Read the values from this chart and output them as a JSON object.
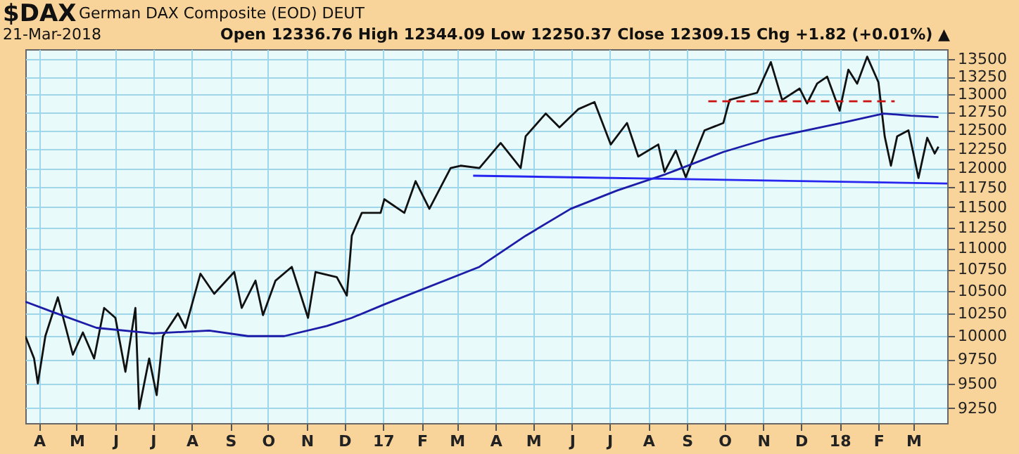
{
  "chart_data": {
    "type": "line",
    "title": "$DAX",
    "subtitle": "German DAX Composite (EOD)  DEUT",
    "annotations": [
      "21-Mar-2018",
      "Open 12336.76  High 12344.09  Low 12250.37  Close 12309.15  Chg +1.82 (+0.01%) ▲"
    ],
    "log": "y",
    "grid": true,
    "legend": false,
    "xlim": [
      "2016-03-21",
      "2018-03-28"
    ],
    "ylim": [
      9100,
      13650
    ],
    "xticks": [
      {
        "value": "2016-04-01",
        "label": "A"
      },
      {
        "value": "2016-05-01",
        "label": "M"
      },
      {
        "value": "2016-06-01",
        "label": "J"
      },
      {
        "value": "2016-07-01",
        "label": "J"
      },
      {
        "value": "2016-08-01",
        "label": "A"
      },
      {
        "value": "2016-09-01",
        "label": "S"
      },
      {
        "value": "2016-10-01",
        "label": "O"
      },
      {
        "value": "2016-11-01",
        "label": "N"
      },
      {
        "value": "2016-12-01",
        "label": "D"
      },
      {
        "value": "2017-01-01",
        "label": "17"
      },
      {
        "value": "2017-02-01",
        "label": "F"
      },
      {
        "value": "2017-03-01",
        "label": "M"
      },
      {
        "value": "2017-04-01",
        "label": "A"
      },
      {
        "value": "2017-05-01",
        "label": "M"
      },
      {
        "value": "2017-06-01",
        "label": "J"
      },
      {
        "value": "2017-07-01",
        "label": "J"
      },
      {
        "value": "2017-08-01",
        "label": "A"
      },
      {
        "value": "2017-09-01",
        "label": "S"
      },
      {
        "value": "2017-10-01",
        "label": "O"
      },
      {
        "value": "2017-11-01",
        "label": "N"
      },
      {
        "value": "2017-12-01",
        "label": "D"
      },
      {
        "value": "2018-01-01",
        "label": "18"
      },
      {
        "value": "2018-02-01",
        "label": "F"
      },
      {
        "value": "2018-03-01",
        "label": "M"
      }
    ],
    "yticks": [
      9250,
      9500,
      9750,
      10000,
      10250,
      10500,
      10750,
      11000,
      11250,
      11500,
      11750,
      12000,
      12250,
      12500,
      12750,
      13000,
      13250,
      13500
    ],
    "series": [
      {
        "color": "#111111",
        "line_style": "solid",
        "x": [
          "2016-03-21",
          "2016-03-28",
          "2016-03-31",
          "2016-04-06",
          "2016-04-16",
          "2016-04-28",
          "2016-05-06",
          "2016-05-15",
          "2016-05-23",
          "2016-06-01",
          "2016-06-09",
          "2016-06-17",
          "2016-06-20",
          "2016-06-28",
          "2016-07-04",
          "2016-07-09",
          "2016-07-21",
          "2016-07-27",
          "2016-08-08",
          "2016-08-19",
          "2016-09-04",
          "2016-09-10",
          "2016-09-21",
          "2016-09-27",
          "2016-10-07",
          "2016-10-20",
          "2016-11-02",
          "2016-11-08",
          "2016-11-25",
          "2016-12-03",
          "2016-12-05",
          "2016-12-07",
          "2016-12-15",
          "2016-12-30",
          "2017-01-02",
          "2017-01-18",
          "2017-01-27",
          "2017-02-07",
          "2017-02-24",
          "2017-03-04",
          "2017-03-19",
          "2017-04-05",
          "2017-04-21",
          "2017-04-25",
          "2017-05-11",
          "2017-05-22",
          "2017-06-06",
          "2017-06-19",
          "2017-07-02",
          "2017-07-15",
          "2017-07-24",
          "2017-08-09",
          "2017-08-14",
          "2017-08-23",
          "2017-08-31",
          "2017-09-09",
          "2017-09-15",
          "2017-09-30",
          "2017-10-05",
          "2017-10-27",
          "2017-11-07",
          "2017-11-16",
          "2017-11-30",
          "2017-12-06",
          "2017-12-14",
          "2017-12-22",
          "2018-01-01",
          "2018-01-08",
          "2018-01-15",
          "2018-01-23",
          "2018-02-01",
          "2018-02-06",
          "2018-02-11",
          "2018-02-16",
          "2018-02-25",
          "2018-03-01",
          "2018-03-05",
          "2018-03-12",
          "2018-03-18",
          "2018-03-21"
        ],
        "values": [
          10000,
          9760,
          9500,
          10000,
          10430,
          9800,
          10040,
          9760,
          10310,
          10200,
          9620,
          10310,
          9240,
          9760,
          9380,
          10000,
          10250,
          10090,
          10700,
          10470,
          10720,
          10310,
          10620,
          10230,
          10620,
          10780,
          10200,
          10720,
          10660,
          10450,
          10780,
          11150,
          11430,
          11430,
          11600,
          11430,
          11830,
          11480,
          12000,
          12030,
          12000,
          12330,
          12000,
          12420,
          12730,
          12540,
          12790,
          12890,
          12310,
          12600,
          12150,
          12310,
          11950,
          12230,
          11880,
          12250,
          12500,
          12600,
          12920,
          13020,
          13460,
          12920,
          13080,
          12870,
          13150,
          13250,
          12770,
          13350,
          13150,
          13540,
          13170,
          12420,
          12030,
          12420,
          12500,
          12190,
          11870,
          12400,
          12190,
          12280
        ]
      },
      {
        "color": "#1c1ca8",
        "line_style": "solid",
        "x": [
          "2016-03-21",
          "2016-04-13",
          "2016-05-17",
          "2016-07-01",
          "2016-08-15",
          "2016-09-15",
          "2016-10-14",
          "2016-11-17",
          "2016-12-07",
          "2017-01-02",
          "2017-03-19",
          "2017-04-25",
          "2017-05-31",
          "2017-07-07",
          "2017-08-15",
          "2017-08-23",
          "2017-09-30",
          "2017-11-07",
          "2018-01-02",
          "2018-02-05",
          "2018-02-27",
          "2018-03-21"
        ],
        "values": [
          10380,
          10260,
          10090,
          10030,
          10060,
          10000,
          10000,
          10110,
          10200,
          10350,
          10780,
          11150,
          11480,
          11710,
          11920,
          11970,
          12210,
          12400,
          12600,
          12730,
          12700,
          12680
        ]
      },
      {
        "color": "#2626f0",
        "line_style": "solid",
        "x": [
          "2017-03-14",
          "2018-03-28"
        ],
        "values": [
          11900,
          11800
        ]
      },
      {
        "color": "#cc1111",
        "line_style": "dashed",
        "x": [
          "2017-09-18",
          "2018-02-14"
        ],
        "values": [
          12900,
          12900
        ]
      }
    ]
  }
}
